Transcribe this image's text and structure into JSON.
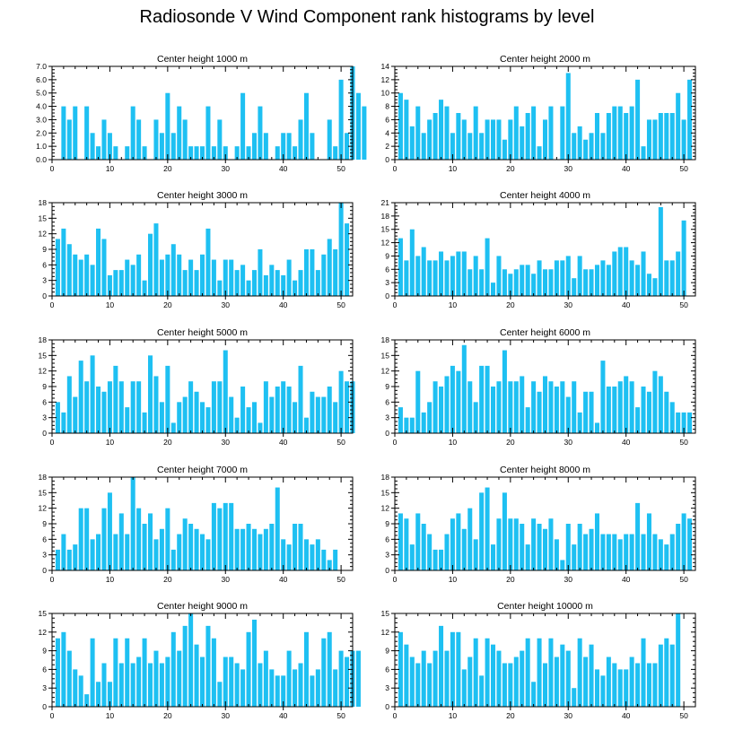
{
  "title": "Radiosonde V Wind Component rank histograms by level",
  "bar_color": "#1EC0F2",
  "chart_data": [
    {
      "type": "bar",
      "title": "Center height 1000 m",
      "xlim": [
        0,
        52
      ],
      "xticks": [
        0,
        10,
        20,
        30,
        40,
        50
      ],
      "ylim": [
        0,
        7
      ],
      "yticks": [
        0,
        1,
        2,
        3,
        4,
        5,
        6,
        7
      ],
      "ytick_labels": [
        "0.0",
        "1.0",
        "2.0",
        "3.0",
        "4.0",
        "5.0",
        "6.0",
        "7.0"
      ],
      "values": [
        0,
        4,
        3,
        4,
        0,
        4,
        2,
        1,
        3,
        2,
        1,
        0,
        1,
        4,
        3,
        1,
        0,
        3,
        2,
        5,
        2,
        4,
        3,
        1,
        1,
        1,
        4,
        1,
        3,
        1,
        0,
        1,
        5,
        1,
        2,
        4,
        2,
        0,
        1,
        2,
        2,
        1,
        3,
        5,
        2,
        0,
        0,
        3,
        1,
        6,
        2,
        7,
        5,
        4
      ]
    },
    {
      "type": "bar",
      "title": "Center height 2000 m",
      "xlim": [
        0,
        52
      ],
      "xticks": [
        0,
        10,
        20,
        30,
        40,
        50
      ],
      "ylim": [
        0,
        14
      ],
      "yticks": [
        0,
        2,
        4,
        6,
        8,
        10,
        12,
        14
      ],
      "ytick_labels": [
        "0",
        "2",
        "4",
        "6",
        "8",
        "10",
        "12",
        "14"
      ],
      "values": [
        10,
        9,
        5,
        8,
        4,
        6,
        7,
        9,
        8,
        4,
        7,
        6,
        4,
        8,
        4,
        6,
        6,
        6,
        3,
        6,
        8,
        5,
        7,
        8,
        2,
        6,
        8,
        0,
        8,
        13,
        4,
        5,
        3,
        4,
        7,
        4,
        7,
        8,
        8,
        7,
        8,
        12,
        2,
        6,
        6,
        7,
        7,
        7,
        10,
        6,
        12
      ]
    },
    {
      "type": "bar",
      "title": "Center height 3000 m",
      "xlim": [
        0,
        52
      ],
      "xticks": [
        0,
        10,
        20,
        30,
        40,
        50
      ],
      "ylim": [
        0,
        18
      ],
      "yticks": [
        0,
        3,
        6,
        9,
        12,
        15,
        18
      ],
      "ytick_labels": [
        "0",
        "3",
        "6",
        "9",
        "12",
        "15",
        "18"
      ],
      "values": [
        11,
        13,
        10,
        8,
        7,
        8,
        6,
        13,
        11,
        4,
        5,
        5,
        7,
        6,
        8,
        3,
        12,
        14,
        7,
        8,
        10,
        8,
        5,
        7,
        5,
        8,
        13,
        7,
        3,
        7,
        7,
        5,
        6,
        3,
        5,
        9,
        4,
        6,
        5,
        4,
        7,
        3,
        5,
        9,
        9,
        5,
        8,
        11,
        9,
        18,
        14
      ]
    },
    {
      "type": "bar",
      "title": "Center height 4000 m",
      "xlim": [
        0,
        52
      ],
      "xticks": [
        0,
        10,
        20,
        30,
        40,
        50
      ],
      "ylim": [
        0,
        21
      ],
      "yticks": [
        0,
        3,
        6,
        9,
        12,
        15,
        18,
        21
      ],
      "ytick_labels": [
        "0",
        "3",
        "6",
        "9",
        "12",
        "15",
        "18",
        "21"
      ],
      "values": [
        13,
        8,
        15,
        9,
        11,
        8,
        8,
        10,
        8,
        9,
        10,
        10,
        6,
        9,
        6,
        13,
        3,
        9,
        6,
        5,
        6,
        7,
        7,
        5,
        8,
        6,
        6,
        8,
        8,
        9,
        4,
        9,
        6,
        6,
        7,
        8,
        7,
        10,
        11,
        11,
        8,
        7,
        10,
        5,
        4,
        20,
        8,
        8,
        10,
        17
      ]
    },
    {
      "type": "bar",
      "title": "Center height 5000 m",
      "xlim": [
        0,
        52
      ],
      "xticks": [
        0,
        10,
        20,
        30,
        40,
        50
      ],
      "ylim": [
        0,
        18
      ],
      "yticks": [
        0,
        3,
        6,
        9,
        12,
        15,
        18
      ],
      "ytick_labels": [
        "0",
        "3",
        "6",
        "9",
        "12",
        "15",
        "18"
      ],
      "values": [
        6,
        4,
        11,
        7,
        14,
        10,
        15,
        9,
        8,
        10,
        13,
        10,
        5,
        10,
        10,
        4,
        15,
        11,
        6,
        13,
        2,
        6,
        7,
        10,
        8,
        6,
        5,
        10,
        10,
        16,
        7,
        3,
        9,
        5,
        6,
        2,
        10,
        7,
        9,
        10,
        9,
        6,
        13,
        3,
        8,
        7,
        7,
        9,
        6,
        12,
        10,
        10
      ]
    },
    {
      "type": "bar",
      "title": "Center height 6000 m",
      "xlim": [
        0,
        52
      ],
      "xticks": [
        0,
        10,
        20,
        30,
        40,
        50
      ],
      "ylim": [
        0,
        18
      ],
      "yticks": [
        0,
        3,
        6,
        9,
        12,
        15,
        18
      ],
      "ytick_labels": [
        "0",
        "3",
        "6",
        "9",
        "12",
        "15",
        "18"
      ],
      "values": [
        5,
        3,
        3,
        12,
        4,
        6,
        10,
        9,
        11,
        13,
        12,
        17,
        10,
        6,
        13,
        13,
        9,
        10,
        16,
        10,
        10,
        11,
        5,
        10,
        8,
        11,
        10,
        9,
        10,
        7,
        10,
        4,
        8,
        8,
        2,
        14,
        9,
        9,
        10,
        11,
        10,
        5,
        9,
        8,
        12,
        11,
        8,
        6,
        4,
        4,
        4
      ]
    },
    {
      "type": "bar",
      "title": "Center height 7000 m",
      "xlim": [
        0,
        52
      ],
      "xticks": [
        0,
        10,
        20,
        30,
        40,
        50
      ],
      "ylim": [
        0,
        18
      ],
      "yticks": [
        0,
        3,
        6,
        9,
        12,
        15,
        18
      ],
      "ytick_labels": [
        "0",
        "3",
        "6",
        "9",
        "12",
        "15",
        "18"
      ],
      "values": [
        4,
        7,
        4,
        5,
        12,
        12,
        6,
        7,
        12,
        15,
        7,
        11,
        7,
        18,
        12,
        9,
        11,
        6,
        8,
        12,
        4,
        7,
        10,
        9,
        8,
        7,
        6,
        13,
        12,
        13,
        13,
        8,
        8,
        9,
        8,
        7,
        8,
        9,
        16,
        6,
        5,
        9,
        9,
        6,
        5,
        6,
        4,
        2,
        4
      ]
    },
    {
      "type": "bar",
      "title": "Center height 8000 m",
      "xlim": [
        0,
        52
      ],
      "xticks": [
        0,
        10,
        20,
        30,
        40,
        50
      ],
      "ylim": [
        0,
        18
      ],
      "yticks": [
        0,
        3,
        6,
        9,
        12,
        15,
        18
      ],
      "ytick_labels": [
        "0",
        "3",
        "6",
        "9",
        "12",
        "15",
        "18"
      ],
      "values": [
        11,
        10,
        5,
        11,
        9,
        7,
        4,
        4,
        7,
        10,
        11,
        8,
        12,
        6,
        15,
        16,
        5,
        10,
        15,
        10,
        10,
        9,
        5,
        10,
        9,
        8,
        10,
        6,
        2,
        9,
        5,
        9,
        7,
        8,
        11,
        7,
        7,
        7,
        6,
        7,
        7,
        13,
        7,
        11,
        7,
        6,
        5,
        7,
        9,
        11,
        10
      ]
    },
    {
      "type": "bar",
      "title": "Center height 9000 m",
      "xlim": [
        0,
        52
      ],
      "xticks": [
        0,
        10,
        20,
        30,
        40,
        50
      ],
      "ylim": [
        0,
        15
      ],
      "yticks": [
        0,
        3,
        6,
        9,
        12,
        15
      ],
      "ytick_labels": [
        "0",
        "3",
        "6",
        "9",
        "12",
        "15"
      ],
      "values": [
        11,
        12,
        9,
        6,
        5,
        2,
        11,
        4,
        7,
        4,
        11,
        7,
        11,
        7,
        8,
        11,
        7,
        9,
        7,
        8,
        12,
        9,
        13,
        15,
        10,
        8,
        13,
        11,
        4,
        8,
        8,
        7,
        6,
        12,
        14,
        7,
        9,
        6,
        5,
        5,
        9,
        6,
        7,
        12,
        5,
        6,
        11,
        12,
        6,
        9,
        8,
        9,
        9
      ]
    },
    {
      "type": "bar",
      "title": "Center height 10000 m",
      "xlim": [
        0,
        52
      ],
      "xticks": [
        0,
        10,
        20,
        30,
        40,
        50
      ],
      "ylim": [
        0,
        15
      ],
      "yticks": [
        0,
        3,
        6,
        9,
        12,
        15
      ],
      "ytick_labels": [
        "0",
        "3",
        "6",
        "9",
        "12",
        "15"
      ],
      "values": [
        12,
        10,
        8,
        7,
        9,
        7,
        9,
        13,
        9,
        12,
        12,
        6,
        8,
        11,
        5,
        11,
        10,
        9,
        7,
        7,
        8,
        9,
        11,
        4,
        11,
        7,
        11,
        8,
        10,
        9,
        3,
        11,
        8,
        10,
        6,
        5,
        8,
        7,
        6,
        6,
        8,
        7,
        11,
        7,
        7,
        10,
        11,
        10,
        15
      ]
    }
  ]
}
